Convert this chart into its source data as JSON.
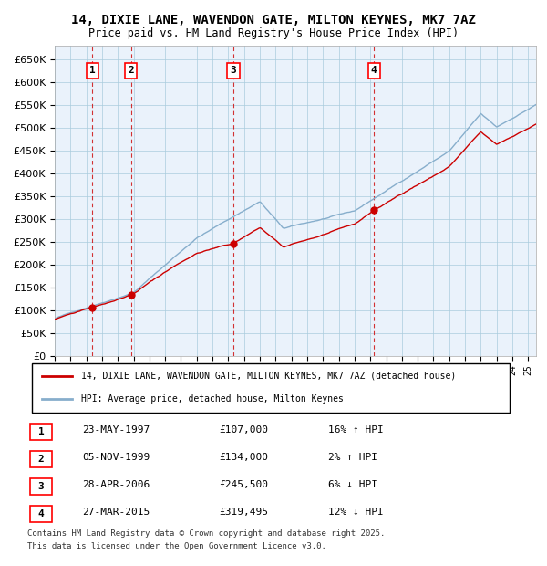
{
  "title": "14, DIXIE LANE, WAVENDON GATE, MILTON KEYNES, MK7 7AZ",
  "subtitle": "Price paid vs. HM Land Registry's House Price Index (HPI)",
  "legend_line1": "14, DIXIE LANE, WAVENDON GATE, MILTON KEYNES, MK7 7AZ (detached house)",
  "legend_line2": "HPI: Average price, detached house, Milton Keynes",
  "footer1": "Contains HM Land Registry data © Crown copyright and database right 2025.",
  "footer2": "This data is licensed under the Open Government Licence v3.0.",
  "transactions": [
    {
      "num": 1,
      "date": "23-MAY-1997",
      "price": 107000,
      "year": 1997.39,
      "pct": "16%",
      "dir": "↑"
    },
    {
      "num": 2,
      "date": "05-NOV-1999",
      "price": 134000,
      "year": 1999.84,
      "pct": "2%",
      "dir": "↑"
    },
    {
      "num": 3,
      "date": "28-APR-2006",
      "price": 245500,
      "year": 2006.32,
      "pct": "6%",
      "dir": "↓"
    },
    {
      "num": 4,
      "date": "27-MAR-2015",
      "price": 319495,
      "year": 2015.23,
      "pct": "12%",
      "dir": "↓"
    }
  ],
  "hpi_color": "#87AECC",
  "price_color": "#CC0000",
  "dot_color": "#CC0000",
  "vline_color": "#CC0000",
  "bg_color": "#EAF2FB",
  "grid_color": "#AACCDD",
  "ylim": [
    0,
    680000
  ],
  "yticks": [
    0,
    50000,
    100000,
    150000,
    200000,
    250000,
    300000,
    350000,
    400000,
    450000,
    500000,
    550000,
    600000,
    650000
  ],
  "xmin": 1995.0,
  "xmax": 2025.5
}
